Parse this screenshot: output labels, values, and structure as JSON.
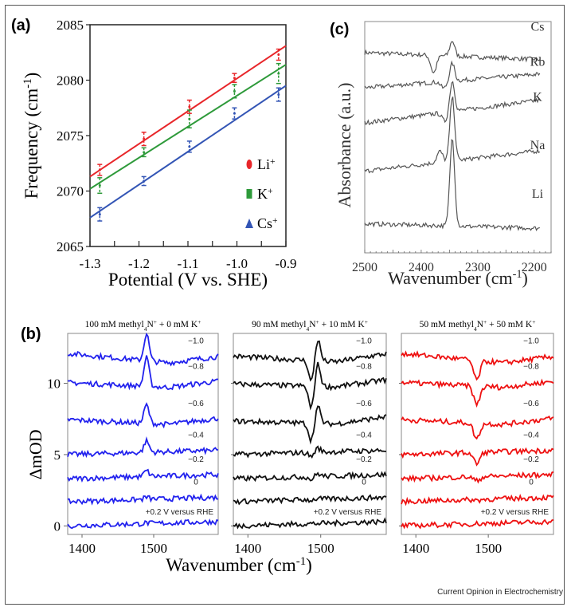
{
  "source_credit": "Current Opinion in Electrochemistry",
  "chart_data": [
    {
      "id": "a",
      "panel_label": "(a)",
      "type": "scatter",
      "xlabel": "Potential (V vs. SHE)",
      "ylabel_main": "Frequency (cm",
      "ylabel_sup": "-1",
      "ylabel_end": ")",
      "xlim": [
        -1.3,
        -0.9
      ],
      "ylim": [
        2065,
        2085
      ],
      "xticks": [
        -1.3,
        -1.2,
        -1.1,
        -1.0,
        -0.9
      ],
      "xtick_labels": [
        "-1.3",
        "-1.2",
        "-1.1",
        "-1.0",
        "-0.9"
      ],
      "yticks": [
        2065,
        2070,
        2075,
        2080,
        2085
      ],
      "ytick_labels": [
        "2065",
        "2070",
        "2075",
        "2080",
        "2085"
      ],
      "legend_position": "bottom-right",
      "x": [
        -1.28,
        -1.19,
        -1.097,
        -1.005,
        -0.915
      ],
      "series": [
        {
          "name": "Li",
          "legend_label": "Li",
          "legend_sup": "+",
          "marker": "ellipse",
          "color": "#e8262a",
          "values": [
            2071.9,
            2074.7,
            2077.6,
            2080.2,
            2082.3
          ],
          "errors": [
            0.5,
            0.6,
            0.6,
            0.4,
            0.5
          ],
          "fit": [
            2071.3,
            2083.1
          ]
        },
        {
          "name": "K",
          "legend_label": "K",
          "legend_sup": "+",
          "marker": "square",
          "color": "#2e9a3a",
          "values": [
            2070.5,
            2073.5,
            2076.5,
            2079.0,
            2080.6
          ],
          "errors": [
            0.7,
            0.4,
            0.8,
            0.6,
            0.9
          ],
          "fit": [
            2070.2,
            2081.4
          ]
        },
        {
          "name": "Cs",
          "legend_label": "Cs",
          "legend_sup": "+",
          "marker": "triangle",
          "color": "#3355b5",
          "values": [
            2067.9,
            2070.9,
            2074.0,
            2077.0,
            2078.7
          ],
          "errors": [
            0.6,
            0.4,
            0.5,
            0.5,
            0.6
          ],
          "fit": [
            2067.6,
            2079.5
          ]
        }
      ]
    },
    {
      "id": "c",
      "panel_label": "(c)",
      "type": "line",
      "xlabel": "Wavenumber (cm",
      "xlabel_sup": "-1",
      "xlabel_end": ")",
      "ylabel": "Absorbance (a.u.)",
      "xlim": [
        2500,
        2170
      ],
      "xticks": [
        2500,
        2400,
        2300,
        2200
      ],
      "xtick_labels": [
        "2500",
        "2400",
        "2300",
        "2200"
      ],
      "peak_position": 2345,
      "series": [
        {
          "name": "Cs",
          "offset": 4.2,
          "peak": 0.35,
          "dip": -0.4,
          "dip_pos": 2378,
          "slope": -0.15
        },
        {
          "name": "Rb",
          "offset": 3.4,
          "peak": 0.4,
          "dip": -0.15,
          "dip_pos": 2360,
          "slope": 0.3
        },
        {
          "name": "K",
          "offset": 2.6,
          "peak": 0.7,
          "dip": -0.2,
          "dip_pos": 2358,
          "slope": 0.5
        },
        {
          "name": "Na",
          "offset": 1.5,
          "peak": 1.45,
          "dip": 0.25,
          "dip_pos": 2367,
          "slope": 0.45
        },
        {
          "name": "Li",
          "offset": 0.3,
          "peak": 2.0,
          "dip": 0.0,
          "dip_pos": 2360,
          "slope": -0.1
        }
      ],
      "color": "#555555"
    },
    {
      "id": "b",
      "panel_label": "(b)",
      "type": "line",
      "xlabel": "Wavenumber (cm",
      "xlabel_sup": "-1",
      "xlabel_end": ")",
      "ylabel": "ΔmOD",
      "xlim": [
        1380,
        1590
      ],
      "ylim": [
        -0.6,
        13.5
      ],
      "xticks": [
        1400,
        1500
      ],
      "xtick_labels": [
        "1400",
        "1500"
      ],
      "yticks": [
        0,
        5,
        10
      ],
      "ytick_labels": [
        "0",
        "5",
        "10"
      ],
      "potential_labels": [
        "−1.0",
        "−0.8",
        "−0.6",
        "−0.4",
        "−0.2",
        "0",
        "+0.2 V versus RHE"
      ],
      "offsets": [
        11.6,
        9.8,
        7.2,
        5.0,
        3.3,
        1.7,
        0
      ],
      "subplots": [
        {
          "title_pre": "100 mM methyl",
          "title_sub": "4",
          "title_mid": "N",
          "title_sup": "+",
          "title_post": " + 0 mM K",
          "title_sup2": "+",
          "color": "#2222ee",
          "peak_pos": 1490,
          "amplitudes": [
            1.9,
            2.0,
            1.3,
            0.8,
            0.4,
            0.15,
            0.05
          ],
          "shape": "peak"
        },
        {
          "title_pre": "90 mM methyl",
          "title_sub": "4",
          "title_mid": "N",
          "title_sup": "+",
          "title_post": " + 10 mM K",
          "title_sup2": "+",
          "color": "#111111",
          "peak_pos": 1492,
          "amplitudes": [
            1.5,
            1.6,
            1.2,
            0.3,
            0.2,
            0.05,
            0.0
          ],
          "shape": "derivative"
        },
        {
          "title_pre": "50 mM methyl",
          "title_sub": "4",
          "title_mid": "N",
          "title_sup": "+",
          "title_post": " + 50 mM K",
          "title_sup2": "+",
          "color": "#ee1111",
          "peak_pos": 1484,
          "amplitudes": [
            -1.4,
            -1.3,
            -1.1,
            -0.8,
            -0.3,
            -0.05,
            0.0
          ],
          "shape": "dip"
        }
      ]
    }
  ]
}
